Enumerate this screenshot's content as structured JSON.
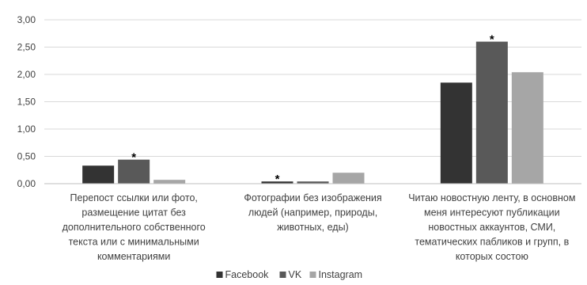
{
  "chart_data": {
    "type": "bar",
    "title": "",
    "xlabel": "",
    "ylabel": "",
    "ylim": [
      0,
      3.0
    ],
    "yticks": [
      "0,00",
      "0,50",
      "1,00",
      "1,50",
      "2,00",
      "2,50",
      "3,00"
    ],
    "grid": true,
    "legend": "bottom",
    "categories": [
      [
        "Перепост ссылки или фото,",
        "размещение цитат без",
        "дополнительного собственного",
        "текста или с минимальными",
        "комментариями"
      ],
      [
        "Фотографии без изображения",
        "людей (например, природы,",
        "животных, еды)"
      ],
      [
        "Читаю новостную ленту, в основном",
        "меня интересуют публикации",
        "новостных аккаунтов, СМИ,",
        "тематических пабликов и групп, в",
        "которых состою"
      ]
    ],
    "series": [
      {
        "name": "Facebook",
        "color": "#333333",
        "values": [
          0.33,
          0.04,
          1.85
        ]
      },
      {
        "name": "VK",
        "color": "#595959",
        "values": [
          0.44,
          0.04,
          2.6
        ]
      },
      {
        "name": "Instagram",
        "color": "#a6a6a6",
        "values": [
          0.07,
          0.2,
          2.04
        ]
      }
    ],
    "annotations": [
      {
        "text": "*",
        "series": 1,
        "category": 0
      },
      {
        "text": "*",
        "series": 0,
        "category": 1
      },
      {
        "text": "*",
        "series": 1,
        "category": 2
      }
    ]
  }
}
